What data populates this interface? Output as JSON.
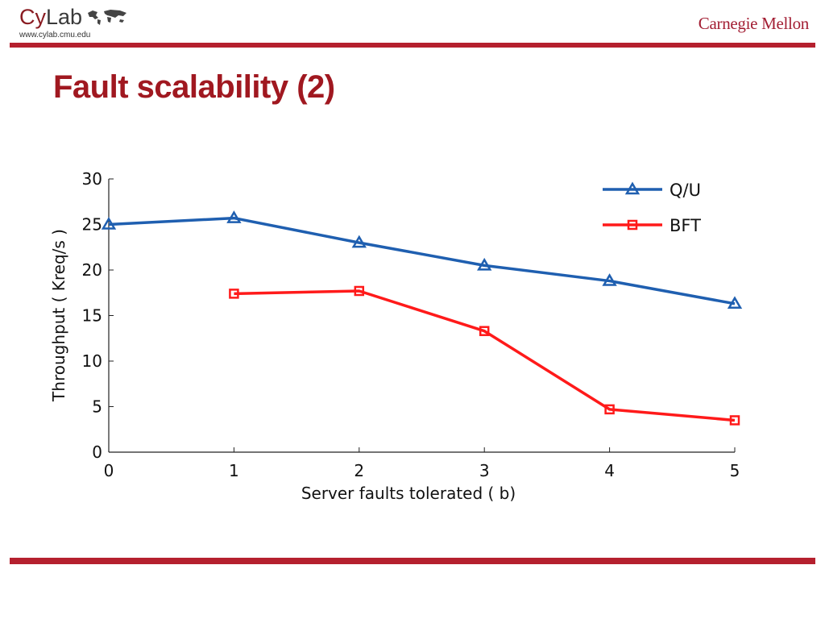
{
  "header": {
    "logo_cy": "Cy",
    "logo_lab": "Lab",
    "url": "www.cylab.cmu.edu",
    "cmu_logo": "Carnegie Mellon"
  },
  "slide": {
    "title": "Fault scalability (2)"
  },
  "colors": {
    "accent": "#b5202e",
    "title": "#a01820",
    "qu": "#1f5fb0",
    "bft": "#ff1a1a"
  },
  "chart_data": {
    "type": "line",
    "title": "",
    "xlabel": "Server faults tolerated ( b)",
    "ylabel": "Throughput (  Kreq/s  )",
    "xlim": [
      0,
      5
    ],
    "ylim": [
      0,
      30
    ],
    "xticks": [
      "0",
      "1",
      "2",
      "3",
      "4",
      "5"
    ],
    "yticks": [
      "0",
      "5",
      "10",
      "15",
      "20",
      "25",
      "30"
    ],
    "legend_position": "top-right",
    "series": [
      {
        "name": "Q/U",
        "marker": "triangle",
        "color": "#1f5fb0",
        "x": [
          0,
          1,
          2,
          3,
          4,
          5
        ],
        "y": [
          25.0,
          25.7,
          23.0,
          20.5,
          18.8,
          16.3
        ]
      },
      {
        "name": "BFT",
        "marker": "square",
        "color": "#ff1a1a",
        "x": [
          1,
          2,
          3,
          4,
          5
        ],
        "y": [
          17.4,
          17.7,
          13.3,
          4.7,
          3.5
        ]
      }
    ]
  }
}
